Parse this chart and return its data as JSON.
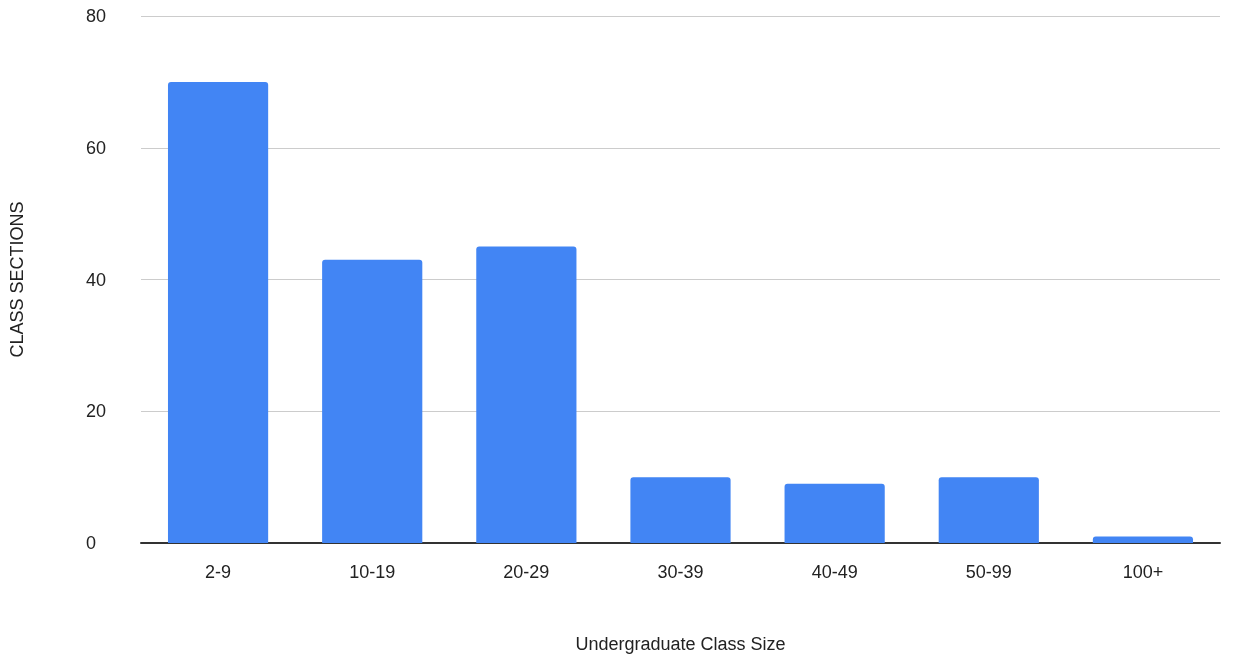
{
  "chart_data": {
    "type": "bar",
    "xlabel": "Undergraduate Class Size",
    "ylabel": "CLASS SECTIONS",
    "categories": [
      "2-9",
      "10-19",
      "20-29",
      "30-39",
      "40-49",
      "50-99",
      "100+"
    ],
    "values": [
      70,
      43,
      45,
      10,
      9,
      10,
      1
    ],
    "color": "#4285f4",
    "ylim": [
      0,
      80
    ],
    "yticks": [
      0,
      20,
      40,
      60,
      80
    ],
    "grid": "y"
  }
}
